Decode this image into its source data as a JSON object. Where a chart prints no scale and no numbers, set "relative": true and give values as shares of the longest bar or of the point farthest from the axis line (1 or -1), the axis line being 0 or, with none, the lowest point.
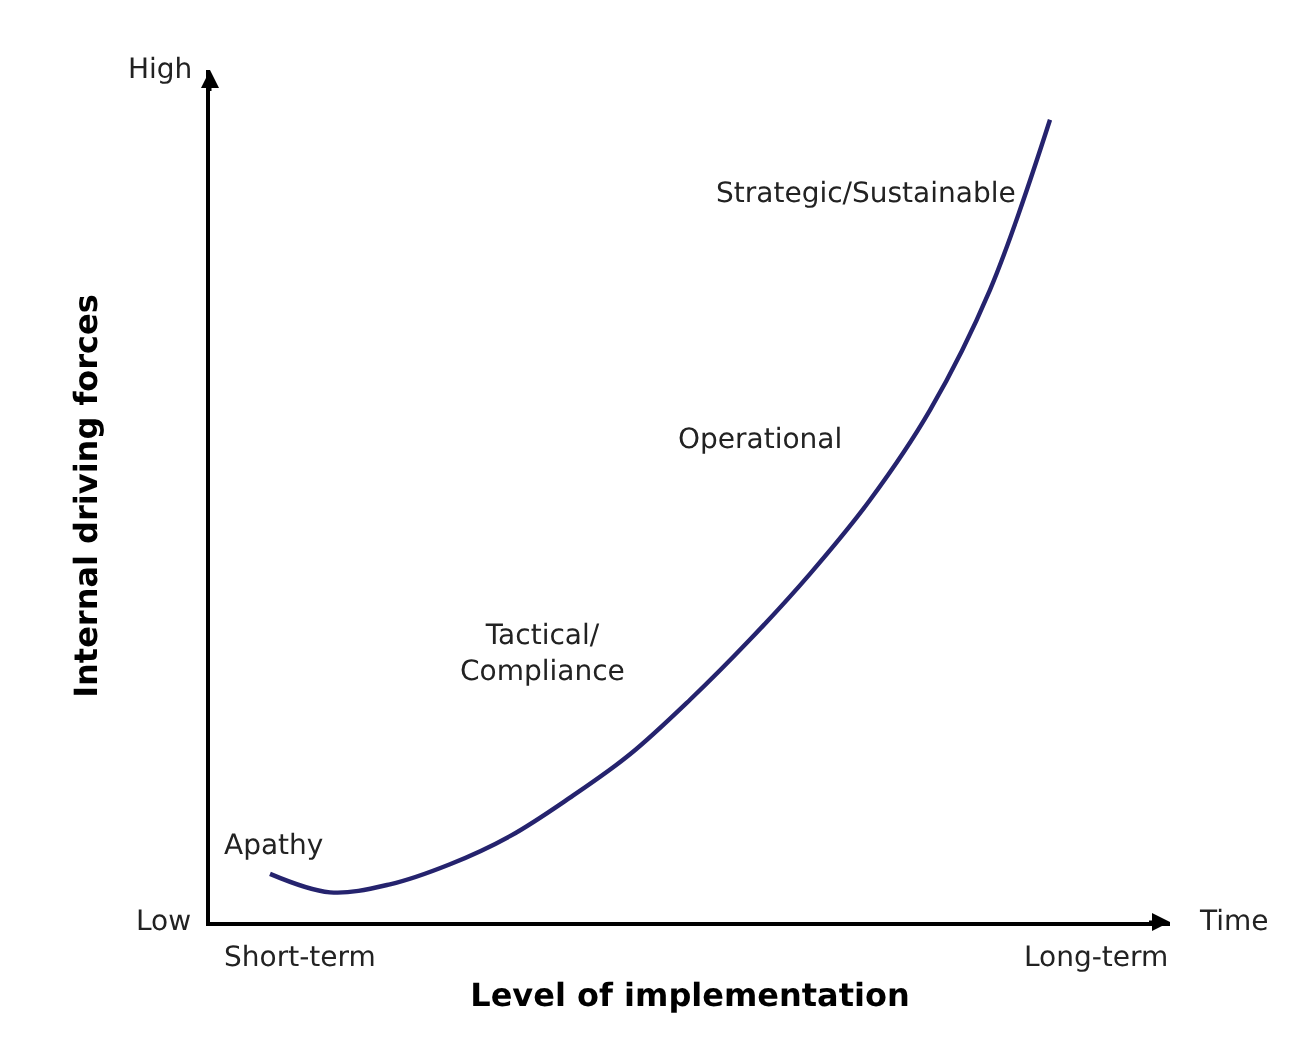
{
  "chart_data": {
    "type": "line",
    "relative": true,
    "xlabel": "Level of implementation",
    "ylabel": "Internal driving forces",
    "categories": [
      null,
      null,
      null,
      null,
      null,
      null,
      null,
      null,
      null,
      null,
      null,
      null,
      null,
      null
    ],
    "series": [
      {
        "color": "#25236e",
        "values": [
          0.06,
          0.037,
          0.047,
          0.072,
          0.107,
          0.155,
          0.209,
          0.277,
          0.352,
          0.434,
          0.526,
          0.638,
          0.788,
          1.0
        ]
      }
    ],
    "annotations": [
      "High",
      "Low",
      "Time",
      "Short-term",
      "Long-term",
      "Apathy",
      "Tactical/\nCompliance",
      "Operational",
      "Strategic/Sustainable"
    ],
    "marker": "none",
    "line_style": "solid"
  }
}
